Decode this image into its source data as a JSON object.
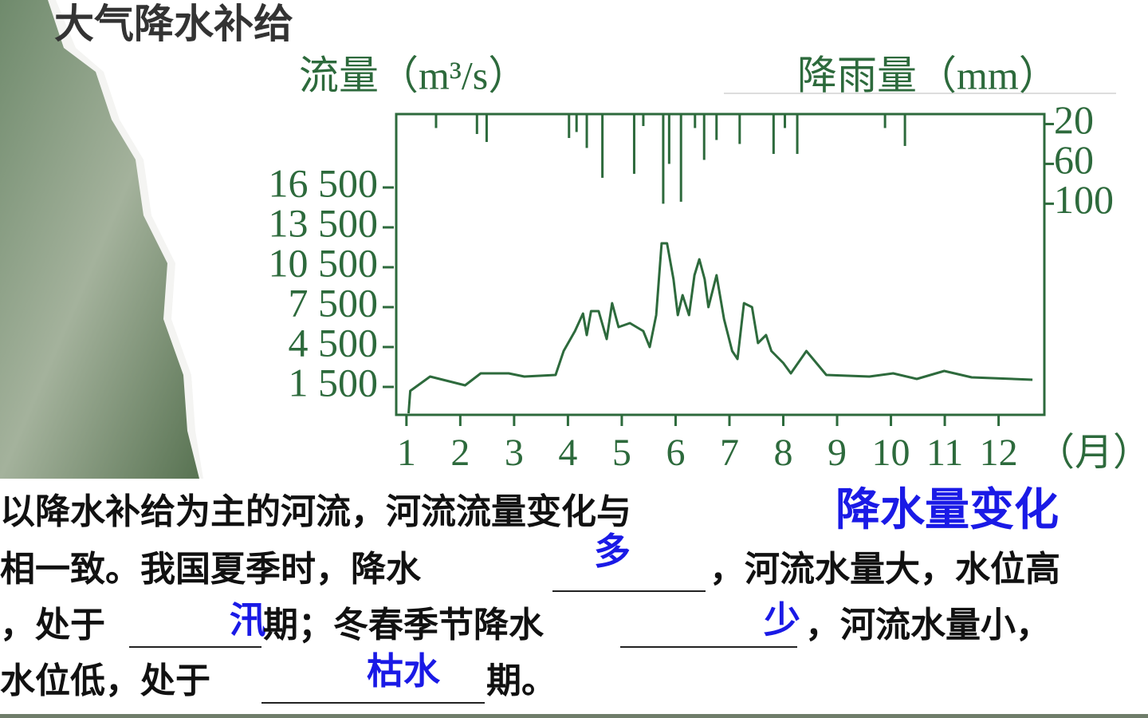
{
  "title": "大气降水补给",
  "chart_data": {
    "type": "line",
    "y_title": "流量（m³/s）",
    "y2_title": "降雨量（mm）",
    "x_title": "（月）",
    "color": "#2d6a3c",
    "xlim": [
      0.81,
      12.85
    ],
    "xticks": [
      1,
      2,
      3,
      4,
      5,
      6,
      7,
      8,
      9,
      10,
      11,
      12
    ],
    "ylim": [
      -600,
      22020
    ],
    "yticks": [
      {
        "value": 1500,
        "label": "1 500"
      },
      {
        "value": 4500,
        "label": "4 500"
      },
      {
        "value": 7500,
        "label": "7 500"
      },
      {
        "value": 10500,
        "label": "10 500"
      },
      {
        "value": 13500,
        "label": "13 500"
      },
      {
        "value": 16500,
        "label": "16 500"
      }
    ],
    "y2lim": [
      10,
      312
    ],
    "y2ticks": [
      20,
      60,
      100
    ],
    "y2_inverted": true,
    "flow": {
      "x": [
        1.04,
        1.07,
        1.44,
        2.09,
        2.38,
        2.9,
        3.19,
        3.77,
        3.92,
        4.13,
        4.28,
        4.35,
        4.43,
        4.57,
        4.72,
        4.82,
        4.94,
        5.15,
        5.4,
        5.52,
        5.64,
        5.74,
        5.84,
        5.96,
        6.04,
        6.13,
        6.25,
        6.35,
        6.44,
        6.54,
        6.61,
        6.76,
        6.9,
        7.05,
        7.15,
        7.27,
        7.42,
        7.53,
        7.68,
        7.78,
        8.0,
        8.14,
        8.43,
        8.8,
        9.6,
        10.04,
        10.48,
        10.99,
        11.5,
        12.63
      ],
      "values": [
        -480,
        1200,
        2280,
        1620,
        2520,
        2520,
        2280,
        2400,
        4200,
        5700,
        7020,
        5400,
        7200,
        7200,
        5100,
        7800,
        6000,
        6300,
        5700,
        4500,
        6900,
        12300,
        12300,
        9600,
        6900,
        8400,
        6900,
        9900,
        11100,
        9600,
        7500,
        9900,
        6600,
        4200,
        3600,
        7800,
        7500,
        4800,
        5400,
        4200,
        3300,
        2520,
        4200,
        2400,
        2280,
        2520,
        2100,
        2700,
        2220,
        2040
      ]
    },
    "rainfall": {
      "axis": "y2",
      "x": [
        1.55,
        2.31,
        2.49,
        4.02,
        4.16,
        4.35,
        4.64,
        5.23,
        5.4,
        5.77,
        5.88,
        6.1,
        6.36,
        6.53,
        6.76,
        7.19,
        7.82,
        8.03,
        8.26,
        9.89,
        10.26
      ],
      "values": [
        24,
        30,
        38,
        34,
        28,
        44,
        74,
        70,
        22,
        100,
        60,
        98,
        24,
        56,
        36,
        40,
        50,
        24,
        50,
        24,
        42
      ]
    }
  },
  "text": {
    "line1": [
      "以降水补给为主的河流，河流流量变化与",
      "降水量变化"
    ],
    "line2": [
      "相一致。我国夏季时，降水",
      "多",
      "，河流水量大，水位高"
    ],
    "line3": [
      "，处于",
      "汛",
      "期；冬春季节降水",
      "少",
      "，河流水量小，"
    ],
    "line4": [
      "水位低，处于",
      "枯水",
      "期。"
    ]
  }
}
